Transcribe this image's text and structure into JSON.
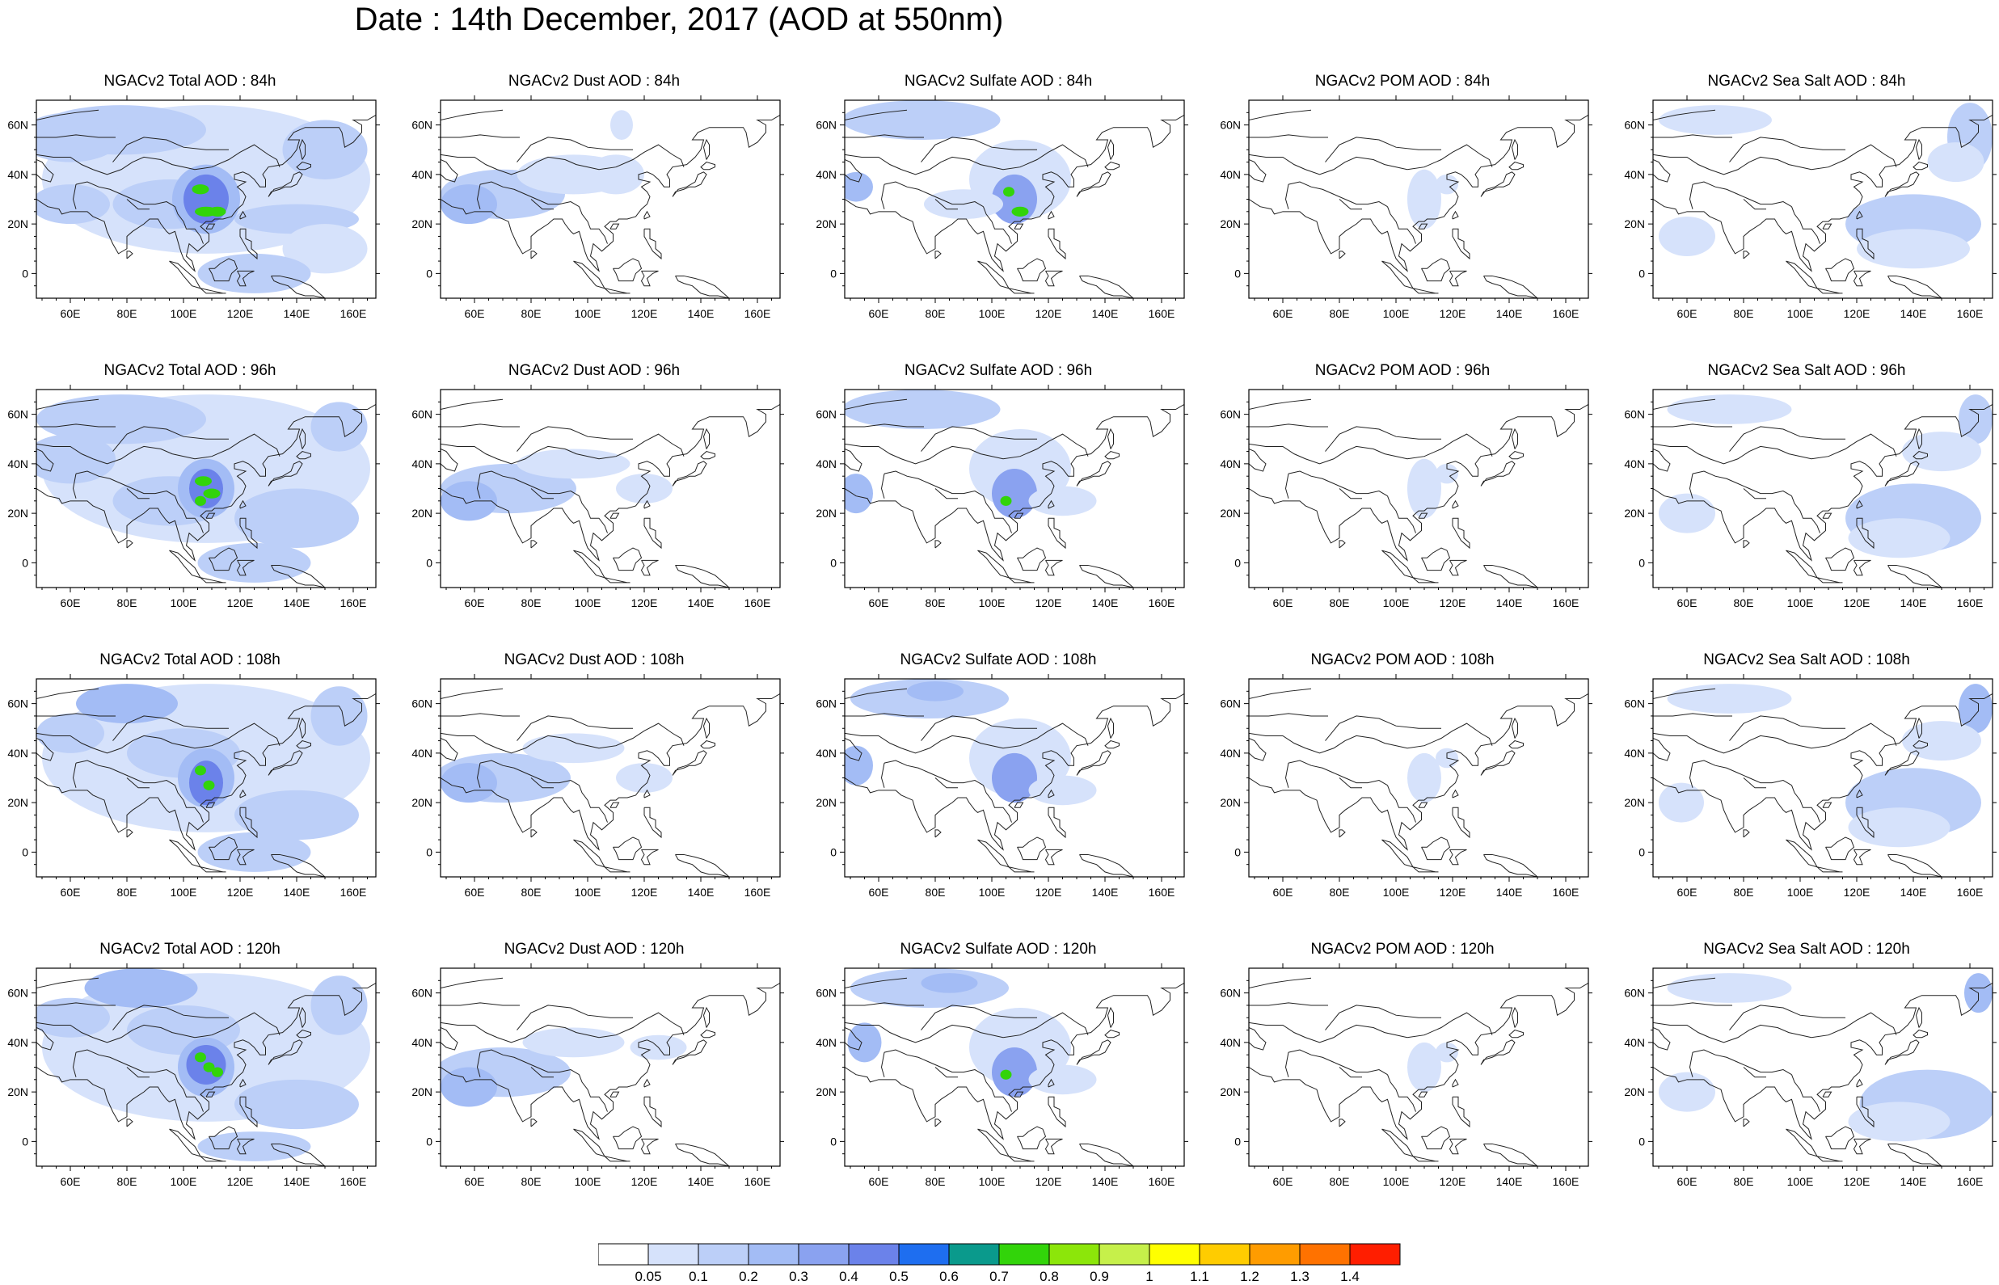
{
  "title": "Date : 14th December, 2017 (AOD at 550nm)",
  "map_axes": {
    "lat_ticks": [
      "60N",
      "40N",
      "20N",
      "0"
    ],
    "lon_ticks": [
      "60E",
      "80E",
      "100E",
      "120E",
      "140E",
      "160E"
    ]
  },
  "panels": [
    {
      "label": "NGACv2 Total AOD : 84h",
      "species": "total",
      "lead": "84h"
    },
    {
      "label": "NGACv2 Dust AOD : 84h",
      "species": "dust",
      "lead": "84h"
    },
    {
      "label": "NGACv2 Sulfate AOD : 84h",
      "species": "sulfate",
      "lead": "84h"
    },
    {
      "label": "NGACv2 POM AOD : 84h",
      "species": "pom",
      "lead": "84h"
    },
    {
      "label": "NGACv2 Sea Salt AOD : 84h",
      "species": "seasalt",
      "lead": "84h"
    },
    {
      "label": "NGACv2 Total AOD : 96h",
      "species": "total",
      "lead": "96h"
    },
    {
      "label": "NGACv2 Dust AOD : 96h",
      "species": "dust",
      "lead": "96h"
    },
    {
      "label": "NGACv2 Sulfate AOD : 96h",
      "species": "sulfate",
      "lead": "96h"
    },
    {
      "label": "NGACv2 POM AOD : 96h",
      "species": "pom",
      "lead": "96h"
    },
    {
      "label": "NGACv2 Sea Salt AOD : 96h",
      "species": "seasalt",
      "lead": "96h"
    },
    {
      "label": "NGACv2 Total AOD : 108h",
      "species": "total",
      "lead": "108h"
    },
    {
      "label": "NGACv2 Dust AOD : 108h",
      "species": "dust",
      "lead": "108h"
    },
    {
      "label": "NGACv2 Sulfate AOD : 108h",
      "species": "sulfate",
      "lead": "108h"
    },
    {
      "label": "NGACv2 POM AOD : 108h",
      "species": "pom",
      "lead": "108h"
    },
    {
      "label": "NGACv2 Sea Salt AOD : 108h",
      "species": "seasalt",
      "lead": "108h"
    },
    {
      "label": "NGACv2 Total AOD : 120h",
      "species": "total",
      "lead": "120h"
    },
    {
      "label": "NGACv2 Dust AOD : 120h",
      "species": "dust",
      "lead": "120h"
    },
    {
      "label": "NGACv2 Sulfate AOD : 120h",
      "species": "sulfate",
      "lead": "120h"
    },
    {
      "label": "NGACv2 POM AOD : 120h",
      "species": "pom",
      "lead": "120h"
    },
    {
      "label": "NGACv2 Sea Salt  AOD : 120h",
      "species": "seasalt",
      "lead": "120h"
    }
  ],
  "colorbar": {
    "labels": [
      "0.05",
      "0.1",
      "0.2",
      "0.3",
      "0.4",
      "0.5",
      "0.6",
      "0.7",
      "0.8",
      "0.9",
      "1",
      "1.1",
      "1.2",
      "1.3",
      "1.4"
    ],
    "colors": [
      "#ffffff",
      "#d6e2fb",
      "#bccff8",
      "#a3bcf5",
      "#8aa2f0",
      "#6b82ea",
      "#1e6ef0",
      "#0a9a8c",
      "#32d40a",
      "#8ce60a",
      "#c6f04a",
      "#ffff00",
      "#ffcc00",
      "#ff9c00",
      "#ff7200",
      "#ff1e00"
    ]
  }
}
